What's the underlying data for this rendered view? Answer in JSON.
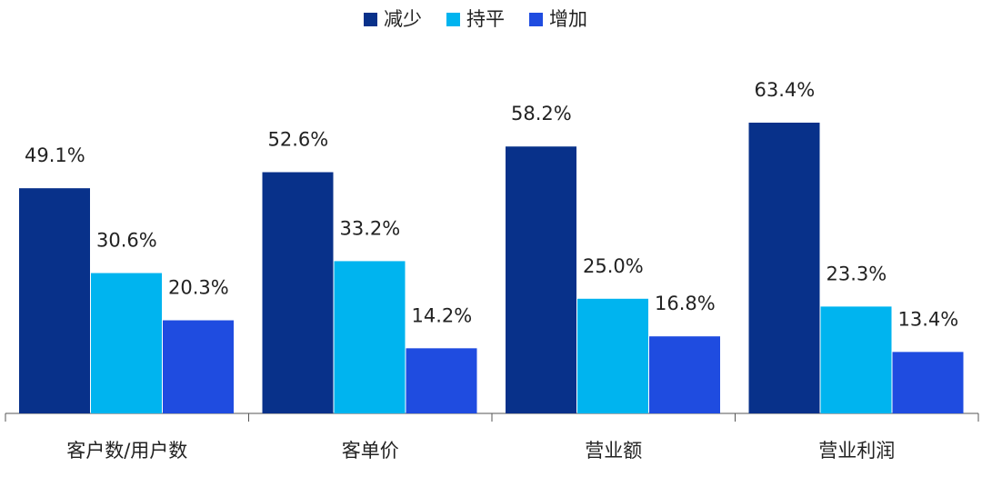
{
  "chart_data": {
    "type": "bar",
    "categories": [
      "客户数/用户数",
      "客单价",
      "营业额",
      "营业利润"
    ],
    "series": [
      {
        "name": "减少",
        "color": "#08318a",
        "values": [
          49.1,
          52.6,
          58.2,
          63.4
        ],
        "value_labels": [
          "49.1%",
          "52.6%",
          "58.2%",
          "63.4%"
        ]
      },
      {
        "name": "持平",
        "color": "#00b4ef",
        "values": [
          30.6,
          33.2,
          25.0,
          23.3
        ],
        "value_labels": [
          "30.6%",
          "33.2%",
          "25.0%",
          "23.3%"
        ]
      },
      {
        "name": "增加",
        "color": "#1f4ce0",
        "values": [
          20.3,
          14.2,
          16.8,
          13.4
        ],
        "value_labels": [
          "20.3%",
          "14.2%",
          "16.8%",
          "13.4%"
        ]
      }
    ],
    "legend": "top"
  }
}
